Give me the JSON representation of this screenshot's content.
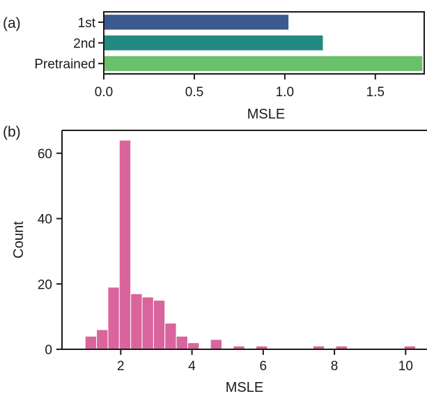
{
  "chart_data": [
    {
      "panel": "(a)",
      "type": "bar",
      "orientation": "horizontal",
      "categories": [
        "1st",
        "2nd",
        "Pretrained"
      ],
      "values": [
        1.02,
        1.21,
        1.76
      ],
      "colors": [
        "#3b5a8f",
        "#228a80",
        "#6abf6a"
      ],
      "xlabel": "MSLE",
      "ylabel": "",
      "xlim": [
        0,
        1.77
      ],
      "xticks": [
        0.0,
        0.5,
        1.0,
        1.5
      ],
      "xtick_labels": [
        "0.0",
        "0.5",
        "1.0",
        "1.5"
      ],
      "grid": false
    },
    {
      "panel": "(b)",
      "type": "bar",
      "subtype": "histogram",
      "bin_width": 0.32,
      "bin_starts": [
        1.0,
        1.32,
        1.64,
        1.96,
        2.28,
        2.6,
        2.92,
        3.24,
        3.56,
        3.88,
        4.52,
        5.16,
        5.8,
        7.4,
        8.04,
        9.96
      ],
      "values": [
        4,
        6,
        19,
        64,
        17,
        16,
        15,
        8,
        4,
        2,
        3,
        1,
        1,
        1,
        1,
        1
      ],
      "color": "#d9659c",
      "xlabel": "MSLE",
      "ylabel": "Count",
      "xlim": [
        0.35,
        10.6
      ],
      "ylim": [
        0,
        67
      ],
      "xticks": [
        2,
        4,
        6,
        8,
        10
      ],
      "yticks": [
        0,
        20,
        40,
        60
      ],
      "grid": false
    }
  ]
}
